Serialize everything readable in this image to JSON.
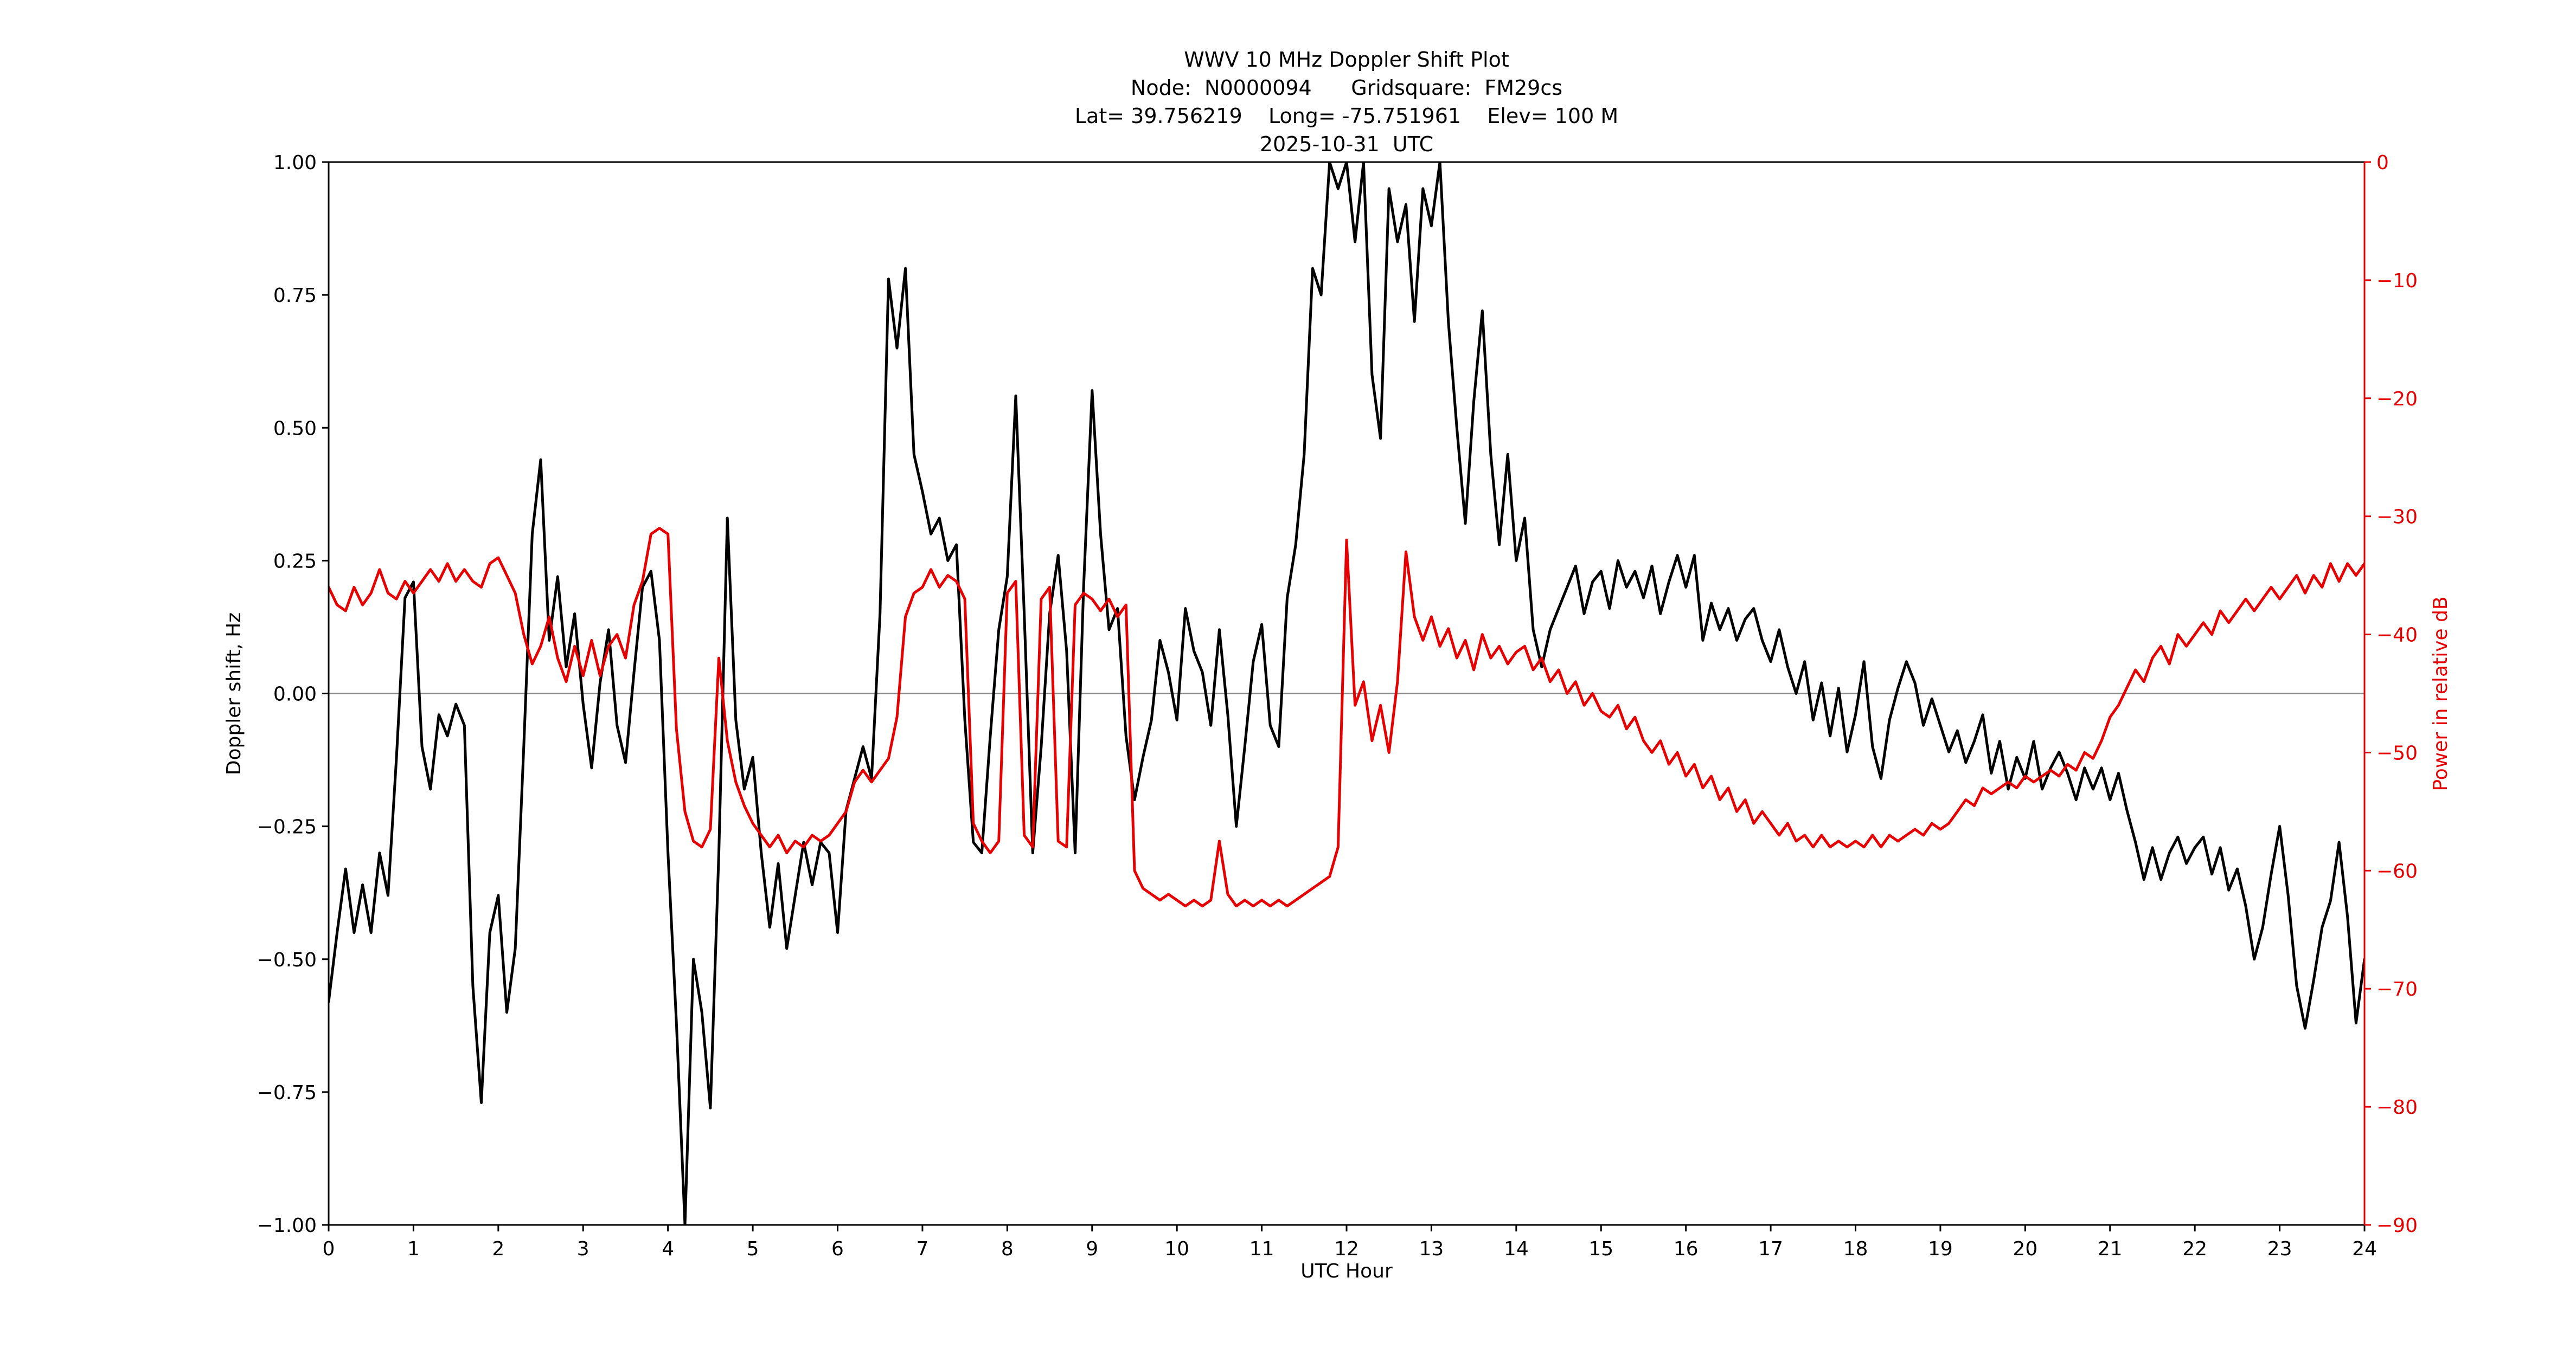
{
  "chart_data": {
    "type": "line",
    "title": "WWV 10 MHz Doppler Shift Plot",
    "subtitle_lines": {
      "node_grid": "Node:  N0000094      Gridsquare:  FM29cs",
      "lat_long_elev": "Lat= 39.756219    Long= -75.751961    Elev= 100 M",
      "date": "2025-10-31  UTC"
    },
    "xlabel": "UTC Hour",
    "ylabel_left": "Doppler shift, Hz",
    "ylabel_right": "Power in relative dB",
    "xlim": [
      0,
      24
    ],
    "ylim_left": [
      -1.0,
      1.0
    ],
    "ylim_right": [
      -90,
      0
    ],
    "grid": "off",
    "legend": "none",
    "x_tick_values": [
      0,
      1,
      2,
      3,
      4,
      5,
      6,
      7,
      8,
      9,
      10,
      11,
      12,
      13,
      14,
      15,
      16,
      17,
      18,
      19,
      20,
      21,
      22,
      23,
      24
    ],
    "x_tick_labels": [
      "0",
      "1",
      "2",
      "3",
      "4",
      "5",
      "6",
      "7",
      "8",
      "9",
      "10",
      "11",
      "12",
      "13",
      "14",
      "15",
      "16",
      "17",
      "18",
      "19",
      "20",
      "21",
      "22",
      "23",
      "24"
    ],
    "y_left_tick_values": [
      1.0,
      0.75,
      0.5,
      0.25,
      0.0,
      -0.25,
      -0.5,
      -0.75,
      -1.0
    ],
    "y_left_tick_labels": [
      "1.00",
      "0.75",
      "0.50",
      "0.25",
      "0.00",
      "−0.25",
      "−0.50",
      "−0.75",
      "−1.00"
    ],
    "y_right_tick_values": [
      0,
      -10,
      -20,
      -30,
      -40,
      -50,
      -60,
      -70,
      -80,
      -90
    ],
    "y_right_tick_labels": [
      "0",
      "−10",
      "−20",
      "−30",
      "−40",
      "−50",
      "−60",
      "−70",
      "−80",
      "−90"
    ],
    "colors": {
      "doppler_line": "#000000",
      "power_line": "#e60000",
      "axis": "#000000",
      "zero_line": "#888888"
    },
    "series": [
      {
        "name": "Doppler shift",
        "axis": "left",
        "color": "#000000",
        "x_start": 0,
        "x_step": 0.1,
        "y": [
          -0.58,
          -0.45,
          -0.33,
          -0.45,
          -0.36,
          -0.45,
          -0.3,
          -0.38,
          -0.12,
          0.18,
          0.21,
          -0.1,
          -0.18,
          -0.04,
          -0.08,
          -0.02,
          -0.06,
          -0.55,
          -0.77,
          -0.45,
          -0.38,
          -0.6,
          -0.48,
          -0.1,
          0.3,
          0.44,
          0.1,
          0.22,
          0.05,
          0.15,
          -0.02,
          -0.14,
          0.02,
          0.12,
          -0.06,
          -0.13,
          0.04,
          0.2,
          0.23,
          0.1,
          -0.3,
          -0.62,
          -1.0,
          -0.5,
          -0.6,
          -0.78,
          -0.3,
          0.33,
          -0.05,
          -0.18,
          -0.12,
          -0.3,
          -0.44,
          -0.32,
          -0.48,
          -0.38,
          -0.28,
          -0.36,
          -0.28,
          -0.3,
          -0.45,
          -0.22,
          -0.16,
          -0.1,
          -0.16,
          0.15,
          0.78,
          0.65,
          0.8,
          0.45,
          0.38,
          0.3,
          0.33,
          0.25,
          0.28,
          -0.05,
          -0.28,
          -0.3,
          -0.08,
          0.12,
          0.22,
          0.56,
          0.15,
          -0.3,
          -0.1,
          0.15,
          0.26,
          0.08,
          -0.3,
          0.2,
          0.57,
          0.3,
          0.12,
          0.16,
          -0.08,
          -0.2,
          -0.12,
          -0.05,
          0.1,
          0.04,
          -0.05,
          0.16,
          0.08,
          0.04,
          -0.06,
          0.12,
          -0.04,
          -0.25,
          -0.1,
          0.06,
          0.13,
          -0.06,
          -0.1,
          0.18,
          0.28,
          0.45,
          0.8,
          0.75,
          1.0,
          0.95,
          1.0,
          0.85,
          1.0,
          0.6,
          0.48,
          0.95,
          0.85,
          0.92,
          0.7,
          0.95,
          0.88,
          1.0,
          0.7,
          0.5,
          0.32,
          0.55,
          0.72,
          0.45,
          0.28,
          0.45,
          0.25,
          0.33,
          0.12,
          0.05,
          0.12,
          0.16,
          0.2,
          0.24,
          0.15,
          0.21,
          0.23,
          0.16,
          0.25,
          0.2,
          0.23,
          0.18,
          0.24,
          0.15,
          0.21,
          0.26,
          0.2,
          0.26,
          0.1,
          0.17,
          0.12,
          0.16,
          0.1,
          0.14,
          0.16,
          0.1,
          0.06,
          0.12,
          0.05,
          0.0,
          0.06,
          -0.05,
          0.02,
          -0.08,
          0.01,
          -0.11,
          -0.04,
          0.06,
          -0.1,
          -0.16,
          -0.05,
          0.01,
          0.06,
          0.02,
          -0.06,
          -0.01,
          -0.06,
          -0.11,
          -0.07,
          -0.13,
          -0.09,
          -0.04,
          -0.15,
          -0.09,
          -0.18,
          -0.12,
          -0.16,
          -0.09,
          -0.18,
          -0.14,
          -0.11,
          -0.15,
          -0.2,
          -0.14,
          -0.18,
          -0.14,
          -0.2,
          -0.15,
          -0.22,
          -0.28,
          -0.35,
          -0.29,
          -0.35,
          -0.3,
          -0.27,
          -0.32,
          -0.29,
          -0.27,
          -0.34,
          -0.29,
          -0.37,
          -0.33,
          -0.4,
          -0.5,
          -0.44,
          -0.34,
          -0.25,
          -0.38,
          -0.55,
          -0.63,
          -0.54,
          -0.44,
          -0.39,
          -0.28,
          -0.42,
          -0.62,
          -0.5
        ]
      },
      {
        "name": "Power in relative dB",
        "axis": "right",
        "color": "#e60000",
        "x_start": 0,
        "x_step": 0.1,
        "y": [
          -36,
          -37.5,
          -38,
          -36,
          -37.5,
          -36.5,
          -34.5,
          -36.5,
          -37,
          -35.5,
          -36.5,
          -35.5,
          -34.5,
          -35.5,
          -34,
          -35.5,
          -34.5,
          -35.5,
          -36,
          -34,
          -33.5,
          -35,
          -36.5,
          -40,
          -42.5,
          -41,
          -38.5,
          -42,
          -44,
          -41,
          -43.5,
          -40.5,
          -43.5,
          -41,
          -40,
          -42,
          -37.5,
          -35.5,
          -31.5,
          -31,
          -31.5,
          -48,
          -55,
          -57.5,
          -58,
          -56.5,
          -42,
          -49,
          -52.5,
          -54.5,
          -56,
          -57,
          -58,
          -57,
          -58.5,
          -57.5,
          -58,
          -57,
          -57.5,
          -57,
          -56,
          -55,
          -52.5,
          -51.5,
          -52.5,
          -51.5,
          -50.5,
          -47,
          -38.5,
          -36.5,
          -36,
          -34.5,
          -36,
          -35,
          -35.5,
          -37,
          -56,
          -57.5,
          -58.5,
          -57.5,
          -36.5,
          -35.5,
          -57,
          -58,
          -37,
          -36,
          -57.5,
          -58,
          -37.5,
          -36.5,
          -37,
          -38,
          -37,
          -38.5,
          -37.5,
          -60,
          -61.5,
          -62,
          -62.5,
          -62,
          -62.5,
          -63,
          -62.5,
          -63,
          -62.5,
          -57.5,
          -62,
          -63,
          -62.5,
          -63,
          -62.5,
          -63,
          -62.5,
          -63,
          -62.5,
          -62,
          -61.5,
          -61,
          -60.5,
          -58,
          -32,
          -46,
          -44,
          -49,
          -46,
          -50,
          -44,
          -33,
          -38.5,
          -40.5,
          -38.5,
          -41,
          -39.5,
          -42,
          -40.5,
          -43,
          -40,
          -42,
          -41,
          -42.5,
          -41.5,
          -41,
          -43,
          -42,
          -44,
          -43,
          -45,
          -44,
          -46,
          -45,
          -46.5,
          -47,
          -46,
          -48,
          -47,
          -49,
          -50,
          -49,
          -51,
          -50,
          -52,
          -51,
          -53,
          -52,
          -54,
          -53,
          -55,
          -54,
          -56,
          -55,
          -56,
          -57,
          -56,
          -57.5,
          -57,
          -58,
          -57,
          -58,
          -57.5,
          -58,
          -57.5,
          -58,
          -57,
          -58,
          -57,
          -57.5,
          -57,
          -56.5,
          -57,
          -56,
          -56.5,
          -56,
          -55,
          -54,
          -54.5,
          -53,
          -53.5,
          -53,
          -52.5,
          -53,
          -52,
          -52.5,
          -52,
          -51.5,
          -52,
          -51,
          -51.5,
          -50,
          -50.5,
          -49,
          -47,
          -46,
          -44.5,
          -43,
          -44,
          -42,
          -41,
          -42.5,
          -40,
          -41,
          -40,
          -39,
          -40,
          -38,
          -39,
          -38,
          -37,
          -38,
          -37,
          -36,
          -37,
          -36,
          -35,
          -36.5,
          -35,
          -36,
          -34,
          -35.5,
          -34,
          -35,
          -34
        ]
      }
    ]
  }
}
